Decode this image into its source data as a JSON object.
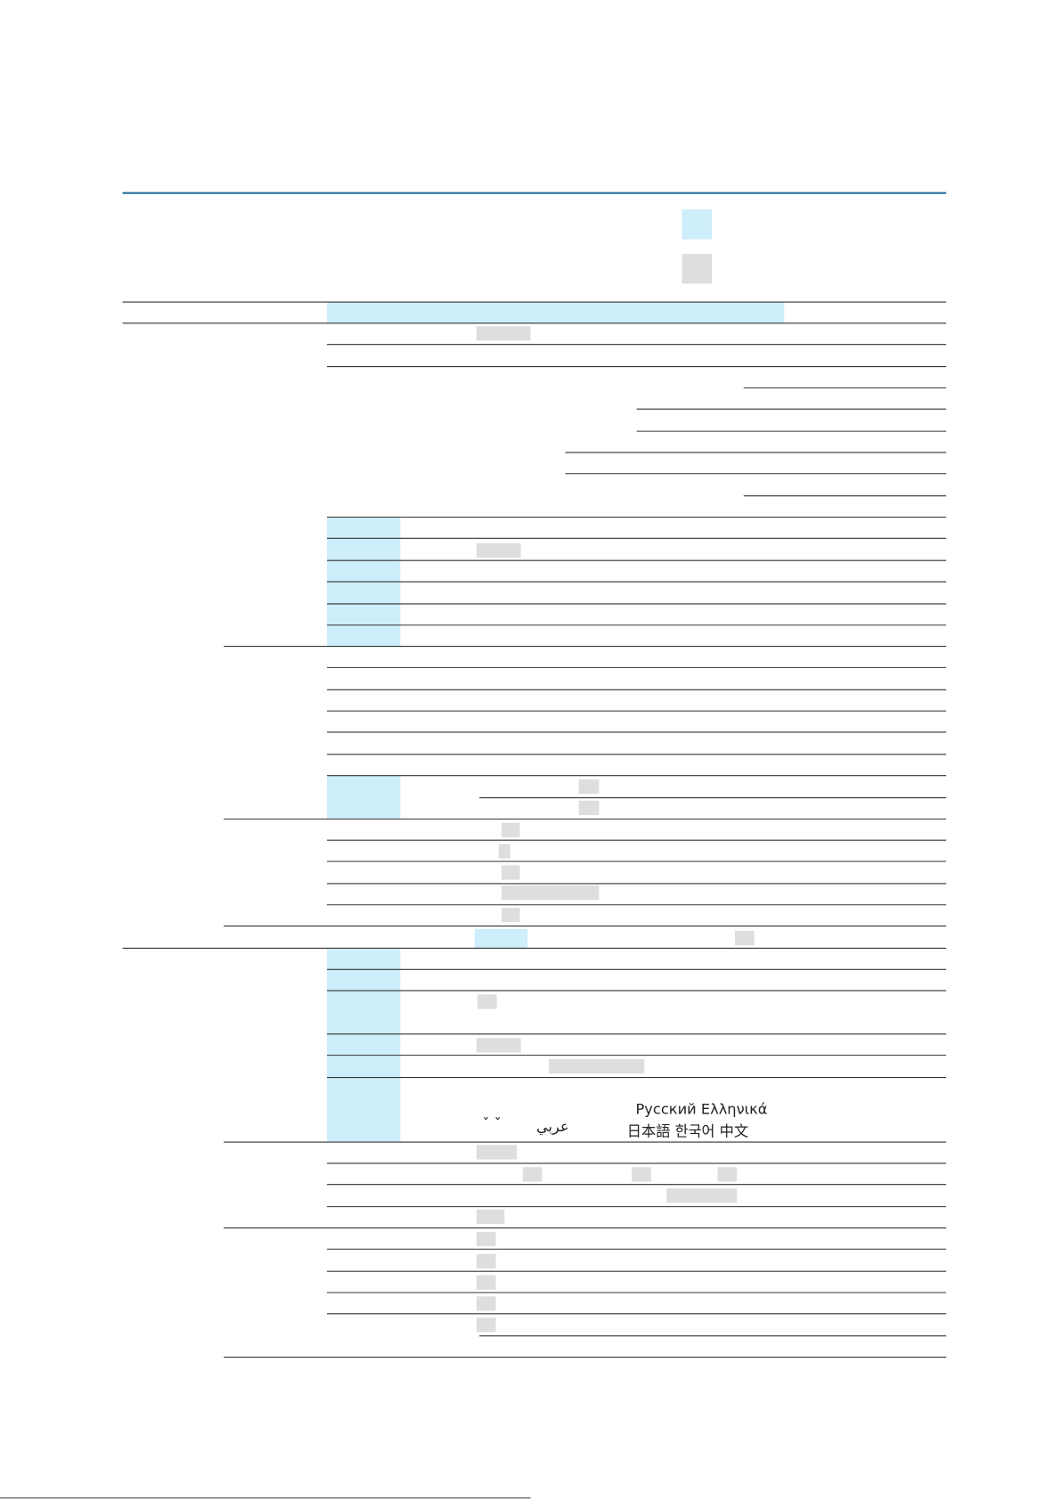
{
  "languages": {
    "accents": "ˇ  ˇ",
    "arabic": "عربي",
    "european": "Русский Ελληνικά",
    "cjk": "日本語 한국어 中文"
  }
}
